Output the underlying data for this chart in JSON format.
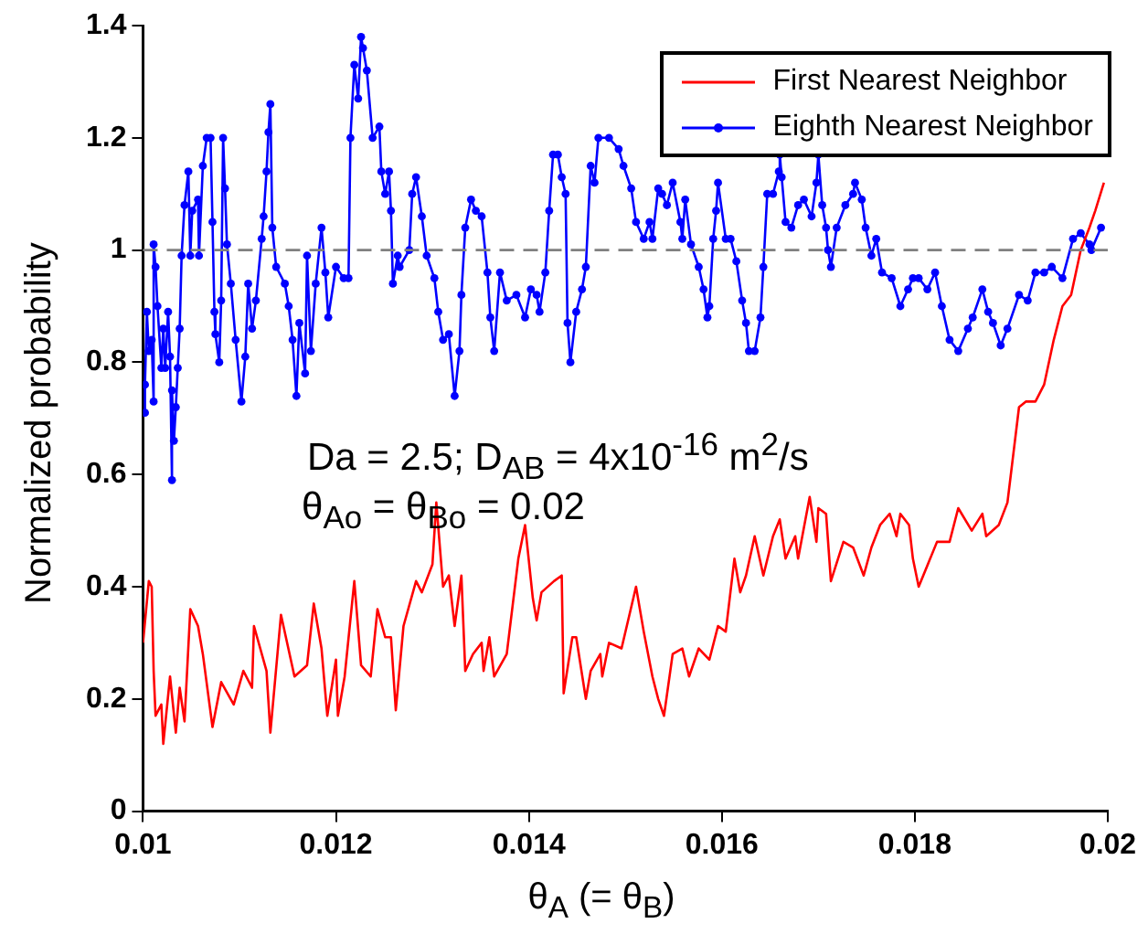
{
  "chart_data": {
    "type": "line",
    "xlabel": "θ$_{A}$ (= θ$_{B}$)",
    "ylabel": "Normalized probability",
    "xlim": [
      0.01,
      0.02
    ],
    "xticks": [
      0.01,
      0.012,
      0.014,
      0.016,
      0.018,
      0.02
    ],
    "ylim": [
      0,
      1.4
    ],
    "yticks": [
      0,
      0.2,
      0.4,
      0.6,
      0.8,
      1,
      1.2,
      1.4
    ],
    "grid": false,
    "legend": "top right",
    "line_style": "solid",
    "annotations": [
      "Da = 2.5; D$_{AB}$ = 4x10$^{-16}$ m$^{2}$/s",
      "θ$_{Ao}$ = θ$_{Bo}$ = 0.02"
    ],
    "ref_lines": [
      {
        "axis": "y",
        "value": 1,
        "label": null,
        "color": "#808080",
        "line_style": "dashed"
      }
    ],
    "series": [
      {
        "name": "First Nearest Neighbor",
        "color": "#ff0000",
        "marker": "none",
        "x": [
          0.01,
          0.01006,
          0.01009,
          0.01011,
          0.01013,
          0.01019,
          0.01021,
          0.01028,
          0.01034,
          0.01038,
          0.01043,
          0.01049,
          0.01057,
          0.01062,
          0.01072,
          0.01081,
          0.01094,
          0.01104,
          0.01113,
          0.01115,
          0.01128,
          0.01132,
          0.01143,
          0.01157,
          0.0117,
          0.01177,
          0.01185,
          0.01191,
          0.012,
          0.01202,
          0.01209,
          0.01219,
          0.01226,
          0.01236,
          0.01243,
          0.01251,
          0.01257,
          0.01262,
          0.0127,
          0.01283,
          0.01289,
          0.013,
          0.01304,
          0.01311,
          0.01317,
          0.01323,
          0.0133,
          0.01334,
          0.01342,
          0.01351,
          0.01353,
          0.01359,
          0.01364,
          0.01377,
          0.01389,
          0.01396,
          0.01404,
          0.01408,
          0.01413,
          0.01426,
          0.01434,
          0.01436,
          0.01445,
          0.01449,
          0.01459,
          0.01464,
          0.01474,
          0.01476,
          0.01483,
          0.01496,
          0.01511,
          0.01519,
          0.01528,
          0.01534,
          0.0154,
          0.01549,
          0.01559,
          0.01566,
          0.01576,
          0.01587,
          0.01596,
          0.01604,
          0.01613,
          0.01619,
          0.01625,
          0.01634,
          0.01643,
          0.01653,
          0.0166,
          0.01666,
          0.01676,
          0.01679,
          0.01691,
          0.01698,
          0.017,
          0.01708,
          0.01713,
          0.01726,
          0.01736,
          0.01747,
          0.01755,
          0.01764,
          0.01774,
          0.01781,
          0.01785,
          0.01794,
          0.01798,
          0.01804,
          0.01823,
          0.01836,
          0.01845,
          0.01859,
          0.0187,
          0.01874,
          0.01887,
          0.01896,
          0.01908,
          0.01915,
          0.01925,
          0.01934,
          0.01944,
          0.01953,
          0.01962,
          0.01972,
          0.01981,
          0.01987,
          0.01996
        ],
        "values": [
          0.3,
          0.41,
          0.4,
          0.25,
          0.17,
          0.19,
          0.12,
          0.24,
          0.14,
          0.22,
          0.16,
          0.36,
          0.33,
          0.28,
          0.15,
          0.23,
          0.19,
          0.25,
          0.22,
          0.33,
          0.25,
          0.14,
          0.35,
          0.24,
          0.26,
          0.37,
          0.29,
          0.17,
          0.27,
          0.17,
          0.24,
          0.41,
          0.26,
          0.24,
          0.36,
          0.31,
          0.31,
          0.18,
          0.33,
          0.41,
          0.39,
          0.44,
          0.55,
          0.4,
          0.42,
          0.33,
          0.42,
          0.25,
          0.28,
          0.3,
          0.25,
          0.31,
          0.24,
          0.28,
          0.45,
          0.51,
          0.38,
          0.34,
          0.39,
          0.41,
          0.42,
          0.21,
          0.31,
          0.31,
          0.2,
          0.25,
          0.28,
          0.24,
          0.3,
          0.29,
          0.4,
          0.32,
          0.24,
          0.2,
          0.17,
          0.28,
          0.29,
          0.24,
          0.29,
          0.27,
          0.33,
          0.32,
          0.45,
          0.39,
          0.42,
          0.49,
          0.42,
          0.49,
          0.52,
          0.45,
          0.49,
          0.45,
          0.56,
          0.48,
          0.54,
          0.53,
          0.41,
          0.48,
          0.47,
          0.42,
          0.47,
          0.51,
          0.53,
          0.49,
          0.53,
          0.51,
          0.45,
          0.4,
          0.48,
          0.48,
          0.54,
          0.5,
          0.53,
          0.49,
          0.51,
          0.55,
          0.72,
          0.73,
          0.73,
          0.76,
          0.84,
          0.9,
          0.92,
          1.0,
          1.04,
          1.07,
          1.12
        ]
      },
      {
        "name": "Eighth Nearest Neighbor",
        "color": "#0000ff",
        "marker": "circle",
        "x": [
          0.01002,
          0.01002,
          0.01004,
          0.01006,
          0.01009,
          0.01011,
          0.01011,
          0.01013,
          0.01015,
          0.01019,
          0.01021,
          0.01023,
          0.01026,
          0.01028,
          0.0103,
          0.0103,
          0.01032,
          0.01034,
          0.01036,
          0.01038,
          0.0104,
          0.01043,
          0.01047,
          0.01049,
          0.01051,
          0.01057,
          0.01058,
          0.01062,
          0.01066,
          0.0107,
          0.01072,
          0.01074,
          0.01075,
          0.01079,
          0.01081,
          0.01083,
          0.01085,
          0.01087,
          0.01091,
          0.01096,
          0.01102,
          0.01106,
          0.01109,
          0.01113,
          0.01117,
          0.01123,
          0.01125,
          0.01128,
          0.0113,
          0.01132,
          0.01134,
          0.01138,
          0.01147,
          0.01151,
          0.01155,
          0.01159,
          0.01162,
          0.01168,
          0.0117,
          0.01174,
          0.01179,
          0.01185,
          0.01189,
          0.01192,
          0.012,
          0.01208,
          0.01213,
          0.01215,
          0.01219,
          0.01223,
          0.01226,
          0.01228,
          0.01232,
          0.01238,
          0.01245,
          0.01247,
          0.01251,
          0.01255,
          0.01257,
          0.01259,
          0.01264,
          0.01266,
          0.01276,
          0.01279,
          0.01283,
          0.01289,
          0.01294,
          0.01302,
          0.01306,
          0.01311,
          0.01317,
          0.01323,
          0.01328,
          0.0133,
          0.01334,
          0.0134,
          0.01345,
          0.01351,
          0.01357,
          0.0136,
          0.01364,
          0.0137,
          0.01377,
          0.01387,
          0.01396,
          0.01402,
          0.01408,
          0.01411,
          0.01417,
          0.01421,
          0.01425,
          0.0143,
          0.01434,
          0.01438,
          0.0144,
          0.01443,
          0.01449,
          0.01455,
          0.01459,
          0.01464,
          0.01468,
          0.01472,
          0.01483,
          0.01493,
          0.01498,
          0.01506,
          0.01511,
          0.01519,
          0.01525,
          0.01528,
          0.01534,
          0.01538,
          0.01543,
          0.01549,
          0.01557,
          0.01559,
          0.01562,
          0.01568,
          0.01576,
          0.01581,
          0.01585,
          0.01587,
          0.01591,
          0.01594,
          0.01596,
          0.01604,
          0.01609,
          0.01615,
          0.01621,
          0.01625,
          0.01628,
          0.01634,
          0.0164,
          0.01643,
          0.01647,
          0.01653,
          0.01659,
          0.0166,
          0.01662,
          0.01666,
          0.01672,
          0.01679,
          0.01685,
          0.01693,
          0.01698,
          0.017,
          0.01704,
          0.01708,
          0.0171,
          0.01713,
          0.01719,
          0.01728,
          0.01736,
          0.01738,
          0.01745,
          0.01749,
          0.01755,
          0.0176,
          0.01766,
          0.01776,
          0.01785,
          0.01793,
          0.01798,
          0.01804,
          0.01813,
          0.01821,
          0.01828,
          0.01836,
          0.01845,
          0.01855,
          0.0186,
          0.0187,
          0.01876,
          0.01881,
          0.01889,
          0.01896,
          0.01908,
          0.01917,
          0.01925,
          0.01934,
          0.01942,
          0.01953,
          0.01964,
          0.01972,
          0.01981,
          0.01983,
          0.01993
        ],
        "values": [
          0.71,
          0.76,
          0.89,
          0.82,
          0.84,
          0.73,
          1.01,
          0.97,
          0.9,
          0.79,
          0.86,
          0.79,
          0.89,
          0.81,
          0.59,
          0.75,
          0.66,
          0.72,
          0.79,
          0.86,
          0.99,
          1.08,
          1.14,
          0.99,
          1.07,
          1.09,
          0.99,
          1.15,
          1.2,
          1.2,
          1.05,
          0.89,
          0.85,
          0.8,
          0.91,
          1.2,
          1.11,
          1.01,
          0.94,
          0.84,
          0.73,
          0.81,
          0.94,
          0.86,
          0.91,
          1.02,
          1.06,
          1.14,
          1.21,
          1.26,
          1.04,
          0.97,
          0.94,
          0.9,
          0.84,
          0.74,
          0.87,
          0.78,
          0.99,
          0.82,
          0.94,
          1.04,
          0.96,
          0.88,
          0.97,
          0.95,
          0.95,
          1.2,
          1.33,
          1.27,
          1.38,
          1.36,
          1.32,
          1.2,
          1.22,
          1.14,
          1.1,
          1.14,
          1.07,
          0.94,
          0.99,
          0.97,
          1.0,
          1.1,
          1.13,
          1.06,
          0.99,
          0.95,
          0.89,
          0.84,
          0.85,
          0.74,
          0.82,
          0.92,
          1.04,
          1.09,
          1.07,
          1.06,
          0.96,
          0.88,
          0.82,
          0.96,
          0.91,
          0.92,
          0.88,
          0.93,
          0.92,
          0.89,
          0.96,
          1.07,
          1.17,
          1.17,
          1.13,
          1.1,
          0.87,
          0.8,
          0.89,
          0.93,
          0.97,
          1.15,
          1.12,
          1.2,
          1.2,
          1.18,
          1.15,
          1.11,
          1.05,
          1.02,
          1.05,
          1.02,
          1.11,
          1.1,
          1.08,
          1.12,
          1.05,
          1.02,
          1.09,
          1.01,
          0.97,
          0.93,
          0.88,
          0.9,
          1.02,
          1.07,
          1.12,
          1.02,
          1.02,
          0.98,
          0.91,
          0.87,
          0.82,
          0.82,
          0.88,
          0.97,
          1.1,
          1.1,
          1.14,
          1.17,
          1.13,
          1.05,
          1.04,
          1.08,
          1.09,
          1.06,
          1.12,
          1.17,
          1.08,
          1.04,
          1.0,
          0.97,
          1.04,
          1.08,
          1.1,
          1.12,
          1.09,
          1.04,
          0.99,
          1.02,
          0.96,
          0.95,
          0.9,
          0.93,
          0.95,
          0.95,
          0.93,
          0.96,
          0.9,
          0.84,
          0.82,
          0.86,
          0.88,
          0.93,
          0.89,
          0.87,
          0.83,
          0.86,
          0.92,
          0.91,
          0.96,
          0.96,
          0.97,
          0.95,
          1.02,
          1.03,
          1.01,
          1.0,
          1.04
        ]
      }
    ]
  }
}
